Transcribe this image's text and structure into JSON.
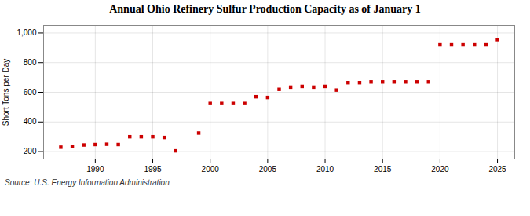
{
  "chart_data": {
    "type": "scatter",
    "title": "Annual Ohio Refinery Sulfur Production Capacity as of January 1",
    "ylabel": "Short Tons per Day",
    "annotations": [
      "Source: U.S. Energy Information Administration"
    ],
    "x": [
      1987,
      1988,
      1989,
      1990,
      1991,
      1992,
      1993,
      1994,
      1995,
      1996,
      1997,
      1999,
      2000,
      2001,
      2002,
      2003,
      2004,
      2005,
      2006,
      2007,
      2008,
      2009,
      2010,
      2011,
      2012,
      2013,
      2014,
      2015,
      2016,
      2017,
      2018,
      2019,
      2020,
      2021,
      2022,
      2023,
      2024,
      2025
    ],
    "values": [
      230,
      235,
      245,
      248,
      250,
      248,
      300,
      300,
      300,
      295,
      205,
      325,
      525,
      525,
      525,
      525,
      570,
      565,
      620,
      635,
      640,
      635,
      640,
      615,
      665,
      665,
      670,
      670,
      670,
      670,
      670,
      670,
      920,
      920,
      920,
      920,
      920,
      955
    ],
    "color": "#cc0000",
    "marker": "square",
    "xlim": [
      1985.5,
      2026.5
    ],
    "xticks": [
      1990,
      1995,
      2000,
      2005,
      2010,
      2015,
      2020,
      2025
    ],
    "ylim": [
      150,
      1050
    ],
    "yticks": [
      200,
      400,
      600,
      800,
      {
        "value": 1000,
        "label": "1,000"
      }
    ],
    "grid": true
  }
}
